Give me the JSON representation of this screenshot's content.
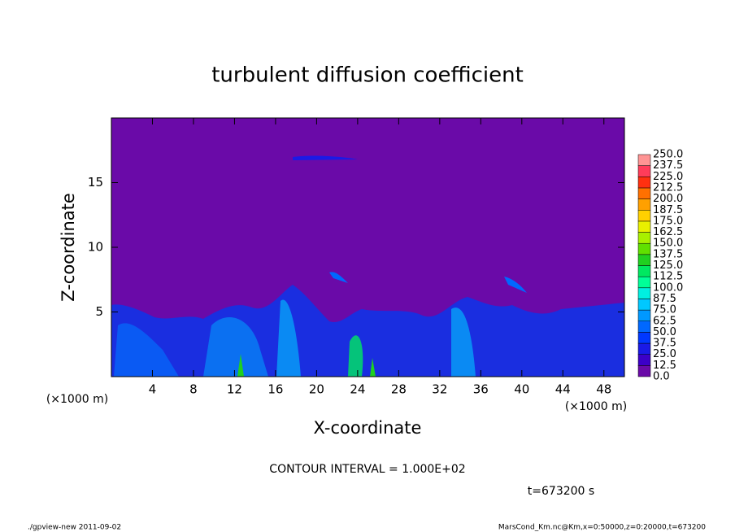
{
  "chart_data": {
    "type": "heatmap",
    "title": "turbulent diffusion coefficient",
    "x_label": "X-coordinate",
    "y_label": "Z-coordinate",
    "x_unit": "(×1000 m)",
    "x_unit_right": "(×1000 m)",
    "xlim": [
      0,
      50
    ],
    "ylim": [
      0,
      20
    ],
    "xticks": [
      4,
      8,
      12,
      16,
      20,
      24,
      28,
      32,
      36,
      40,
      44,
      48
    ],
    "yticks": [
      5,
      10,
      15
    ],
    "colorbar": {
      "levels": [
        {
          "value": 0,
          "label": "0.0"
        },
        {
          "value": 12.5,
          "label": "12.5"
        },
        {
          "value": 25,
          "label": "25.0"
        },
        {
          "value": 37.5,
          "label": "37.5"
        },
        {
          "value": 50,
          "label": "50.0"
        },
        {
          "value": 62.5,
          "label": "62.5"
        },
        {
          "value": 75,
          "label": "75.0"
        },
        {
          "value": 87.5,
          "label": "87.5"
        },
        {
          "value": 100,
          "label": "100.0"
        },
        {
          "value": 112.5,
          "label": "112.5"
        },
        {
          "value": 125,
          "label": "125.0"
        },
        {
          "value": 137.5,
          "label": "137.5"
        },
        {
          "value": 150,
          "label": "150.0"
        },
        {
          "value": 162.5,
          "label": "162.5"
        },
        {
          "value": 175,
          "label": "175.0"
        },
        {
          "value": 187.5,
          "label": "187.5"
        },
        {
          "value": 200,
          "label": "200.0"
        },
        {
          "value": 212.5,
          "label": "212.5"
        },
        {
          "value": 225,
          "label": "225.0"
        },
        {
          "value": 237.5,
          "label": "237.5"
        },
        {
          "value": 250,
          "label": "250.0"
        }
      ],
      "colors": [
        "#6a0aa8",
        "#3c00c8",
        "#1a1ae6",
        "#0038ff",
        "#0068ff",
        "#0098ff",
        "#00c8ff",
        "#00f0e0",
        "#00ff98",
        "#00e860",
        "#20d020",
        "#60e000",
        "#a8f000",
        "#e8f000",
        "#ffd000",
        "#ffa000",
        "#ff7000",
        "#ff3010",
        "#ff3c5a",
        "#ff9494"
      ]
    },
    "contour_interval": "CONTOUR INTERVAL = 1.000E+02",
    "time_label": "t=673200 s",
    "footer_left": "./gpview-new  2011-09-02",
    "footer_right": "MarsCond_Km.nc@Km,x=0:50000,z=0:20000,t=673200"
  }
}
